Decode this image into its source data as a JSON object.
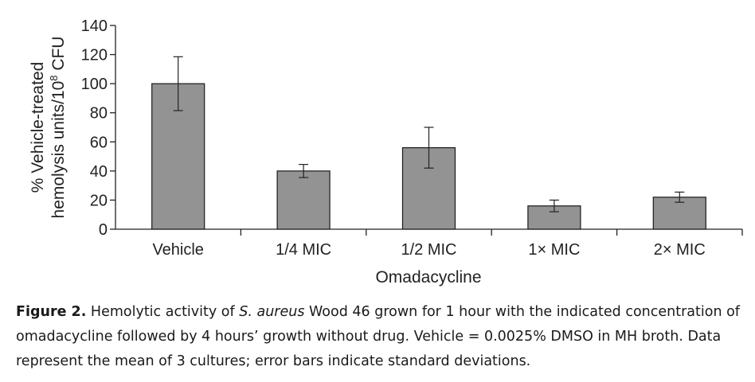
{
  "chart_data": {
    "type": "bar",
    "categories": [
      "Vehicle",
      "1/4 MIC",
      "1/2 MIC",
      "1× MIC",
      "2× MIC"
    ],
    "values": [
      100,
      40,
      56,
      16,
      22
    ],
    "errors": [
      18.5,
      4.5,
      14,
      4,
      3.5
    ],
    "xlabel": "Omadacycline",
    "ylabel_line1": "% Vehicle-treated",
    "ylabel_line2_pre": "hemolysis units/10",
    "ylabel_line2_sup": "8",
    "ylabel_line2_post": " CFU",
    "ylim": [
      0,
      140
    ],
    "yticks": [
      0,
      20,
      40,
      60,
      80,
      100,
      120,
      140
    ],
    "grid": false,
    "bar_color": "#939393",
    "bar_edge_color": "#1a1a1a"
  },
  "caption": {
    "label": "Figure 2.",
    "text_before_species": " Hemolytic activity of ",
    "species": "S. aureus",
    "text_after_species": " Wood 46 grown for 1 hour with the indicated concentration of omadacycline followed by 4 hours’ growth without drug. Vehicle = 0.0025% DMSO in MH broth. Data represent the mean of 3 cultures; error bars indicate standard deviations."
  }
}
